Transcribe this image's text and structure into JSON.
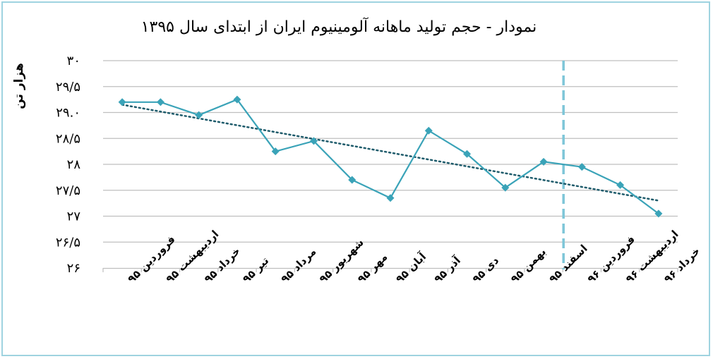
{
  "chart_data": {
    "type": "line",
    "title": "نمودار - حجم تولید ماهانه آلومینیوم ایران از ابتدای سال ۱۳۹۵",
    "ylabel": "هزار تن",
    "xlabel": "",
    "ylim": [
      26,
      30
    ],
    "yticks": [
      {
        "value": 30,
        "label": "۳۰"
      },
      {
        "value": 29.5,
        "label": "۲۹/۵"
      },
      {
        "value": 29,
        "label": "۲۹.۰"
      },
      {
        "value": 28.5,
        "label": "۲۸/۵"
      },
      {
        "value": 28,
        "label": "۲۸"
      },
      {
        "value": 27.5,
        "label": "۲۷/۵"
      },
      {
        "value": 27,
        "label": "۲۷"
      },
      {
        "value": 26.5,
        "label": "۲۶/۵"
      },
      {
        "value": 26,
        "label": "۲۶"
      }
    ],
    "categories": [
      "فروردین ۹۵",
      "اردیبهشت ۹۵",
      "خرداد ۹۵",
      "تیر ۹۵",
      "مرداد ۹۵",
      "شهریور ۹۵",
      "مهر ۹۵",
      "آبان ۹۵",
      "آذر ۹۵",
      "دی ۹۵",
      "بهمن ۹۵",
      "اسفند ۹۵",
      "فروردین ۹۶",
      "اردیبهشت ۹۶",
      "خرداد ۹۶"
    ],
    "series": [
      {
        "values": [
          29.2,
          29.2,
          28.95,
          29.25,
          28.25,
          28.45,
          27.7,
          27.35,
          28.65,
          28.2,
          27.55,
          28.05,
          27.95,
          27.6,
          27.05
        ],
        "color": "#3aa3b8"
      }
    ],
    "trendline": {
      "start": 29.15,
      "end": 27.3,
      "color": "#1e5b6b",
      "style": "dotted"
    },
    "divider_after_category": 11,
    "divider_color": "#7ec6d8",
    "grid": true
  }
}
